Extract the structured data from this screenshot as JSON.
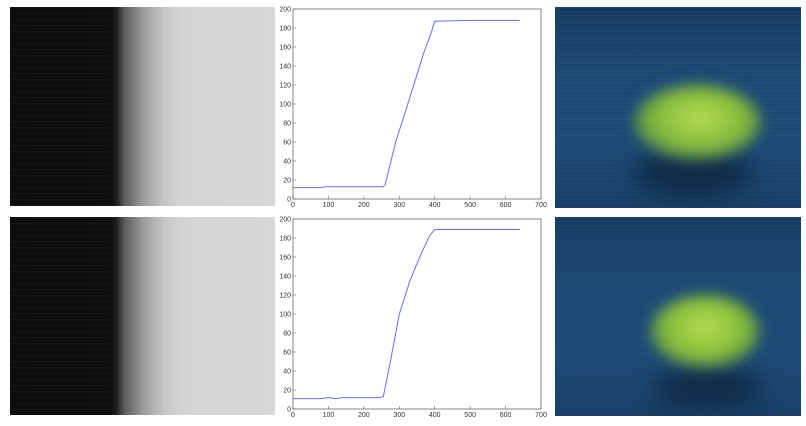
{
  "chart_data": [
    {
      "type": "line",
      "xlim": [
        0,
        700
      ],
      "ylim": [
        0,
        200
      ],
      "xticks": [
        0,
        100,
        200,
        300,
        400,
        500,
        600,
        700
      ],
      "yticks": [
        0,
        20,
        40,
        60,
        80,
        100,
        120,
        140,
        160,
        180,
        200
      ],
      "series_color": "#6b6bff",
      "x": [
        0,
        80,
        90,
        255,
        260,
        290,
        330,
        370,
        390,
        400,
        500,
        640
      ],
      "y": [
        12,
        12,
        13,
        13,
        15,
        60,
        107,
        155,
        175,
        187,
        188,
        188
      ]
    },
    {
      "type": "line",
      "xlim": [
        0,
        700
      ],
      "ylim": [
        0,
        200
      ],
      "xticks": [
        0,
        100,
        200,
        300,
        400,
        500,
        600,
        700
      ],
      "yticks": [
        0,
        20,
        40,
        60,
        80,
        100,
        120,
        140,
        160,
        180,
        200
      ],
      "series_color": "#6b6bff",
      "x": [
        0,
        80,
        100,
        120,
        140,
        245,
        255,
        275,
        300,
        330,
        360,
        385,
        400,
        640
      ],
      "y": [
        11,
        11,
        12,
        11,
        12,
        12,
        13,
        50,
        100,
        135,
        162,
        182,
        189,
        189
      ]
    }
  ],
  "images": {
    "edge_top": "grayscale-edge-image",
    "edge_bottom": "grayscale-edge-image",
    "ball_top": "blurred-green-ball-on-blue",
    "ball_bottom": "blurred-green-ball-on-blue"
  }
}
